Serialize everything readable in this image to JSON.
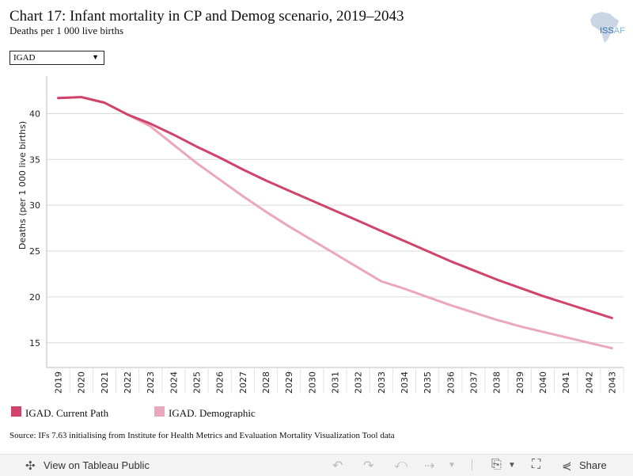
{
  "header": {
    "title": "Chart 17: Infant mortality in CP and Demog scenario, 2019–2043",
    "subtitle": "Deaths per 1 000 live births",
    "logo_text": "ISS AFRICA"
  },
  "filter": {
    "selected": "IGAD"
  },
  "chart_data": {
    "type": "line",
    "title": "Chart 17: Infant mortality in CP and Demog scenario, 2019–2043",
    "subtitle": "Deaths per 1 000 live births",
    "xlabel": "",
    "ylabel": "Deaths (per 1 000 live births)",
    "x": [
      "2019",
      "2020",
      "2021",
      "2022",
      "2023",
      "2024",
      "2025",
      "2026",
      "2027",
      "2028",
      "2029",
      "2030",
      "2031",
      "2032",
      "2033",
      "2034",
      "2035",
      "2036",
      "2037",
      "2038",
      "2039",
      "2040",
      "2041",
      "2042",
      "2043"
    ],
    "yticks": [
      15,
      20,
      25,
      30,
      35,
      40
    ],
    "ylim": [
      12.3,
      44.1
    ],
    "grid": true,
    "legend_position": "bottom-left",
    "series": [
      {
        "name": "IGAD. Current Path",
        "color": "#d0436a",
        "values": [
          41.7,
          41.8,
          41.2,
          39.9,
          38.9,
          37.7,
          36.4,
          35.2,
          33.9,
          32.7,
          31.6,
          30.5,
          29.4,
          28.3,
          27.2,
          26.1,
          25.0,
          23.9,
          22.9,
          21.9,
          21.0,
          20.1,
          19.3,
          18.5,
          17.7
        ]
      },
      {
        "name": "IGAD. Demographic",
        "color": "#eba7bc",
        "values": [
          41.7,
          41.8,
          41.2,
          39.9,
          38.6,
          36.6,
          34.6,
          32.8,
          31.0,
          29.3,
          27.7,
          26.2,
          24.7,
          23.2,
          21.7,
          20.9,
          20.0,
          19.1,
          18.3,
          17.5,
          16.8,
          16.2,
          15.6,
          15.0,
          14.4
        ]
      }
    ],
    "source": "Source: IFs 7.63 initialising from Institute for Health Metrics and Evaluation Mortality Visualization Tool data"
  },
  "toolbar": {
    "view_label": "View on Tableau Public",
    "share_label": "Share"
  }
}
